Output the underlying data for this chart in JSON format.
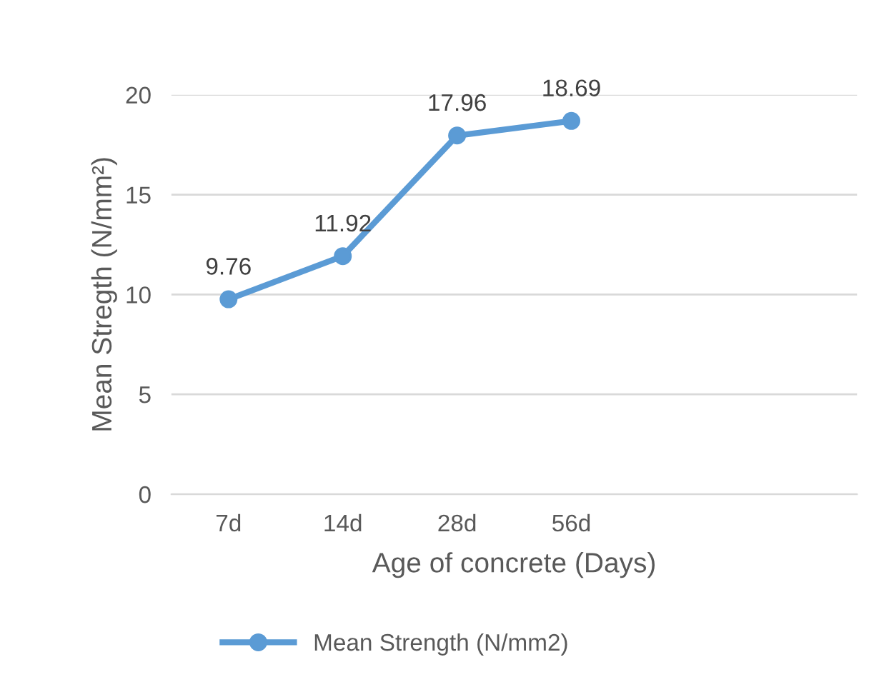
{
  "chart_data": {
    "type": "line",
    "xlabel": "Age of concrete (Days)",
    "ylabel": "Mean Stregth (N/mm²)",
    "categories": [
      "7d",
      "14d",
      "28d",
      "56d",
      null,
      null
    ],
    "series": [
      {
        "name": "Mean Strength (N/mm2)",
        "color": "#5b9bd5",
        "values": [
          9.76,
          11.92,
          17.96,
          18.69,
          null,
          null
        ]
      }
    ],
    "ylim": [
      0,
      20
    ],
    "yticks": [
      0,
      5,
      10,
      15,
      20
    ],
    "grid": "y",
    "legend": "bottom",
    "marker": "circle",
    "line_style": "solid",
    "data_labels": true
  }
}
